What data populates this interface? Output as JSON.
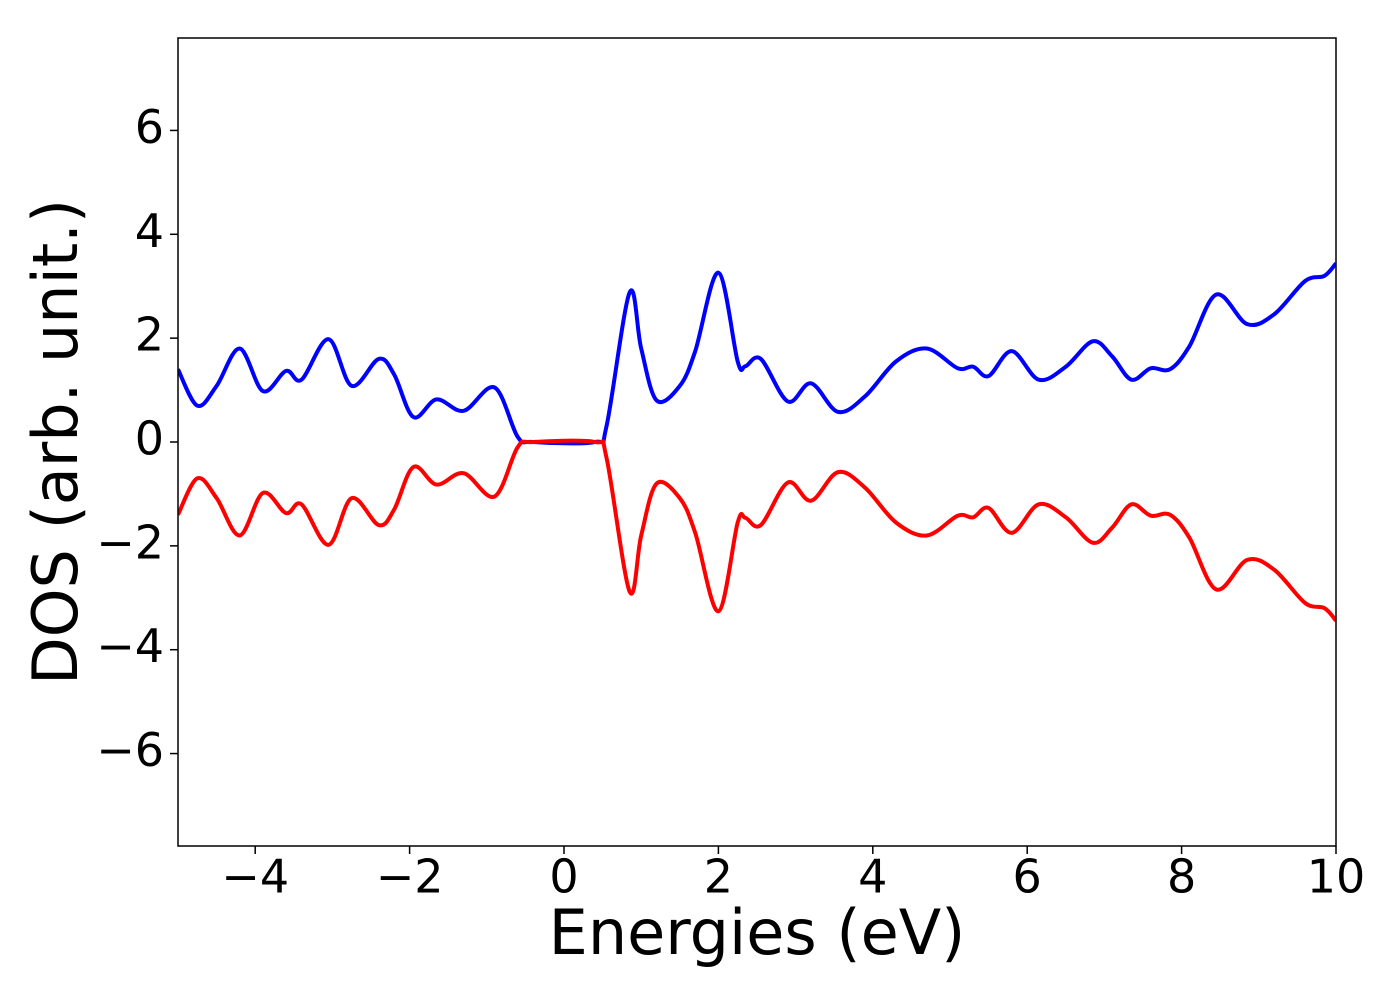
{
  "chart_data": {
    "type": "line",
    "xlabel": "Energies (eV)",
    "ylabel": "DOS (arb. unit.)",
    "x": [
      -5,
      -4.75,
      -4.5,
      -4.2,
      -3.9,
      -3.6,
      -3.4,
      -3.05,
      -2.75,
      -2.4,
      -2.2,
      -1.95,
      -1.65,
      -1.3,
      -0.9,
      -0.6,
      -0.4,
      0.4,
      0.55,
      0.85,
      1.0,
      1.2,
      1.5,
      1.7,
      2.0,
      2.25,
      2.35,
      2.55,
      2.9,
      3.2,
      3.55,
      3.9,
      4.3,
      4.7,
      5.1,
      5.3,
      5.5,
      5.8,
      6.15,
      6.5,
      6.85,
      7.1,
      7.35,
      7.6,
      7.85,
      8.1,
      8.45,
      8.85,
      9.2,
      9.6,
      9.85,
      10
    ],
    "series": [
      {
        "color": "#0000ff",
        "values": [
          1.4,
          0.7,
          1.08,
          1.8,
          0.98,
          1.37,
          1.2,
          1.98,
          1.08,
          1.6,
          1.3,
          0.48,
          0.82,
          0.6,
          1.05,
          0.1,
          0,
          0,
          0.3,
          2.88,
          1.8,
          0.8,
          1.08,
          1.75,
          3.26,
          1.55,
          1.46,
          1.6,
          0.78,
          1.13,
          0.58,
          0.88,
          1.55,
          1.8,
          1.42,
          1.45,
          1.27,
          1.75,
          1.2,
          1.45,
          1.94,
          1.65,
          1.2,
          1.42,
          1.4,
          1.84,
          2.84,
          2.27,
          2.46,
          3.1,
          3.2,
          3.44
        ]
      },
      {
        "color": "#ff0000",
        "values": [
          -1.4,
          -0.7,
          -1.08,
          -1.8,
          -0.98,
          -1.37,
          -1.2,
          -1.98,
          -1.08,
          -1.6,
          -1.3,
          -0.48,
          -0.82,
          -0.6,
          -1.05,
          -0.1,
          0,
          0,
          -0.3,
          -2.88,
          -1.8,
          -0.8,
          -1.08,
          -1.75,
          -3.26,
          -1.55,
          -1.46,
          -1.6,
          -0.78,
          -1.13,
          -0.58,
          -0.88,
          -1.55,
          -1.8,
          -1.42,
          -1.45,
          -1.27,
          -1.75,
          -1.2,
          -1.45,
          -1.94,
          -1.65,
          -1.2,
          -1.42,
          -1.4,
          -1.84,
          -2.84,
          -2.27,
          -2.46,
          -3.1,
          -3.2,
          -3.44
        ]
      }
    ],
    "xlim": [
      -5,
      10
    ],
    "xticks": [
      {
        "value": -4,
        "label": "−4"
      },
      {
        "value": -2,
        "label": "−2"
      },
      0,
      2,
      4,
      6,
      8,
      10
    ],
    "ylim": [
      -7.78,
      7.78
    ],
    "yticks": [
      {
        "value": -6,
        "label": "−6"
      },
      {
        "value": -4,
        "label": "−4"
      },
      {
        "value": -2,
        "label": "−2"
      },
      0,
      2,
      4,
      6
    ],
    "grid": false
  }
}
